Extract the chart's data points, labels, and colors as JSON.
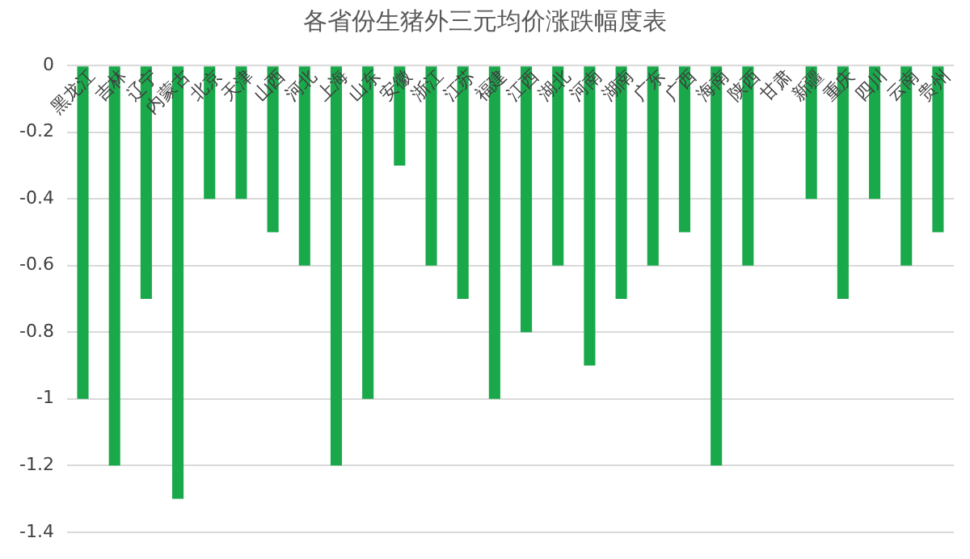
{
  "chart_data": {
    "type": "bar",
    "title": "各省份生猪外三元均价涨跌幅度表",
    "categories": [
      "黑龙江",
      "吉林",
      "辽宁",
      "内蒙古",
      "北京",
      "天津",
      "山西",
      "河北",
      "上海",
      "山东",
      "安徽",
      "浙江",
      "江苏",
      "福建",
      "江西",
      "湖北",
      "河南",
      "湖南",
      "广东",
      "广西",
      "海南",
      "陕西",
      "甘肃",
      "新疆",
      "重庆",
      "四川",
      "云南",
      "贵州"
    ],
    "values": [
      -1,
      -1.2,
      -0.7,
      -1.3,
      -0.4,
      -0.4,
      -0.5,
      -0.6,
      -1.2,
      -1,
      -0.3,
      -0.6,
      -0.7,
      -1,
      -0.8,
      -0.6,
      -0.9,
      -0.7,
      -0.6,
      -0.5,
      -1.2,
      -0.6,
      0,
      -0.4,
      -0.7,
      -0.4,
      -0.6,
      -0.5
    ],
    "color": "#19a94b",
    "ylim": [
      -1.4,
      0
    ],
    "yticks": [
      -1.4,
      -1.2,
      -1,
      -0.8,
      -0.6,
      -0.4,
      -0.2,
      0
    ],
    "grid": "y"
  }
}
